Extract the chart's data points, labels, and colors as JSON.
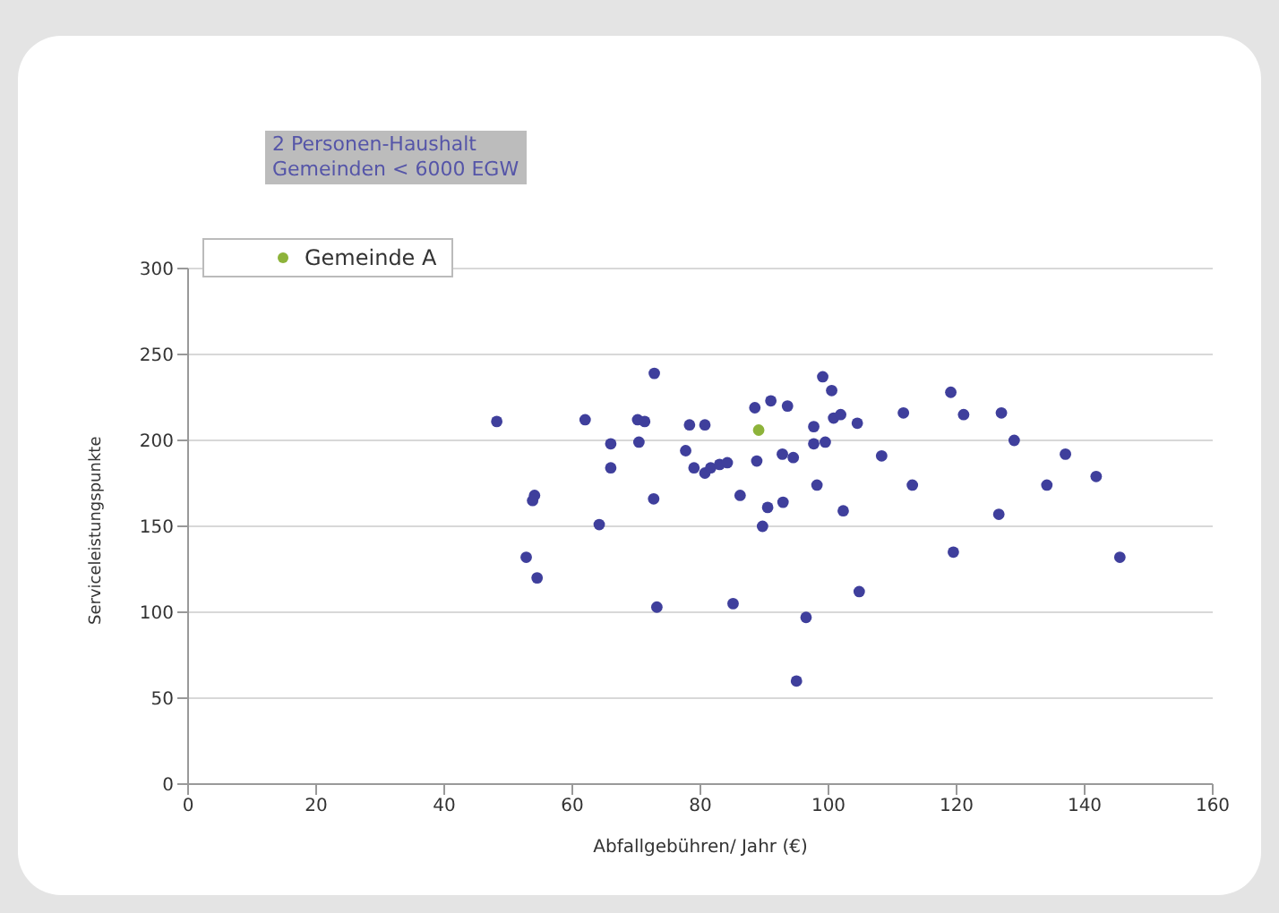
{
  "chart_data": {
    "type": "scatter",
    "title": "2 Personen-Haushalt",
    "subtitle": "Gemeinden < 6000 EGW",
    "xlabel": "Abfallgebühren/ Jahr (€)",
    "ylabel": "Serviceleistungspunkte",
    "xlim": [
      0,
      160
    ],
    "xticks": [
      0,
      20,
      40,
      60,
      80,
      100,
      120,
      140,
      160
    ],
    "ylim": [
      0,
      300
    ],
    "yticks": [
      0,
      50,
      100,
      150,
      200,
      250,
      300
    ],
    "grid": "y",
    "legend": "top left",
    "marker": "circle",
    "series": [
      {
        "color": "#3f3f9c",
        "x": [
          48.2,
          54.1,
          53.8,
          52.8,
          54.5,
          62,
          64.2,
          66,
          66,
          70.2,
          71.3,
          70.4,
          72.8,
          72.7,
          73.2,
          78.3,
          77.7,
          79,
          80.7,
          80.7,
          81.6,
          83,
          84.2,
          85.1,
          86.2,
          88.5,
          91,
          93.6,
          88.8,
          89.7,
          90.5,
          92.9,
          92.8,
          94.5,
          95,
          96.5,
          98.2,
          97.7,
          97.7,
          99.5,
          99.1,
          100.5,
          100.8,
          101.9,
          104.5,
          102.3,
          104.8,
          108.3,
          111.7,
          113.1,
          119.1,
          119.5,
          121.1,
          126.6,
          127,
          129,
          134.1,
          137,
          141.8,
          145.5
        ],
        "values": [
          211,
          168,
          165,
          132,
          120,
          212,
          151,
          198,
          184,
          212,
          211,
          199,
          239,
          166,
          103,
          209,
          194,
          184,
          209,
          181,
          184,
          186,
          187,
          105,
          168,
          219,
          223,
          220,
          188,
          150,
          161,
          164,
          192,
          190,
          60,
          97,
          174,
          208,
          198,
          199,
          237,
          229,
          213,
          215,
          210,
          159,
          112,
          191,
          216,
          174,
          228,
          135,
          215,
          157,
          216,
          200,
          174,
          192,
          179,
          132
        ]
      },
      {
        "name": "Gemeinde A",
        "color": "#8db33a",
        "x": [
          89.1
        ],
        "values": [
          206
        ]
      }
    ]
  }
}
